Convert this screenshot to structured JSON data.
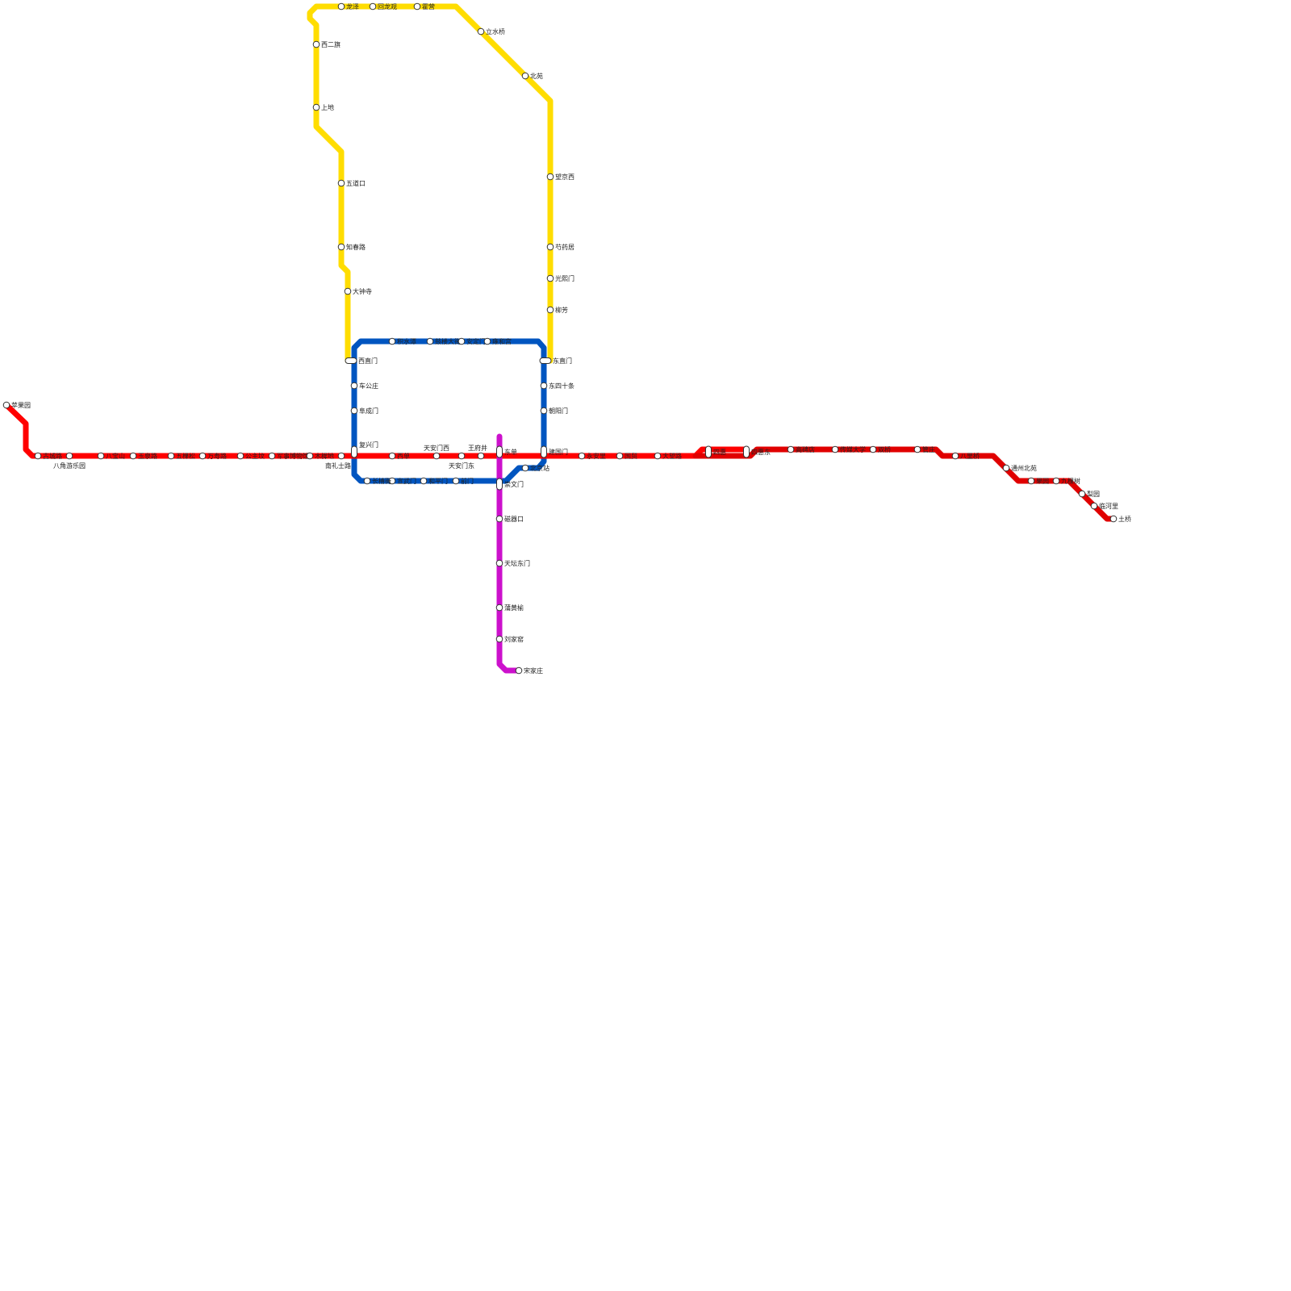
{
  "lines": [
    {
      "id": "yellow",
      "color": "#ffdd00",
      "stations": [
        "西直门",
        "大钟寺",
        "知春路",
        "五道口",
        "上地",
        "西二旗",
        "龙泽",
        "回龙观",
        "霍营",
        "立水桥",
        "北苑",
        "望京西",
        "芍药居",
        "光熙门",
        "柳芳",
        "东直门"
      ]
    },
    {
      "id": "blue",
      "color": "#0055c0",
      "stations": [
        "积水潭",
        "鼓楼大街",
        "安定门",
        "雍和宫",
        "东直门",
        "东四十条",
        "朝阳门",
        "建国门",
        "北京站",
        "崇文门",
        "前门",
        "和平门",
        "宣武门",
        "长椿街",
        "复兴门",
        "阜成门",
        "车公庄",
        "西直门"
      ]
    },
    {
      "id": "red",
      "color": "#ff0000",
      "stations": [
        "苹果园",
        "古城路",
        "八角游乐园",
        "八宝山",
        "玉泉路",
        "五棵松",
        "万寿路",
        "公主坟",
        "军事博物馆",
        "木樨地",
        "南礼士路",
        "复兴门",
        "西单",
        "天安门西",
        "天安门东",
        "王府井",
        "东单",
        "建国门",
        "永安里",
        "国贸",
        "大望路",
        "四惠",
        "四惠东"
      ]
    },
    {
      "id": "darkred",
      "color": "#e00000",
      "stations": [
        "四惠",
        "四惠东",
        "高碑店",
        "传媒大学",
        "双桥",
        "管庄",
        "八里桥",
        "通州北苑",
        "果园",
        "九棵树",
        "梨园",
        "临河里",
        "土桥"
      ]
    },
    {
      "id": "purple",
      "color": "#cc11cc",
      "stations": [
        "东单",
        "崇文门",
        "磁器口",
        "天坛东门",
        "蒲黄榆",
        "刘家窑",
        "宋家庄"
      ]
    }
  ]
}
